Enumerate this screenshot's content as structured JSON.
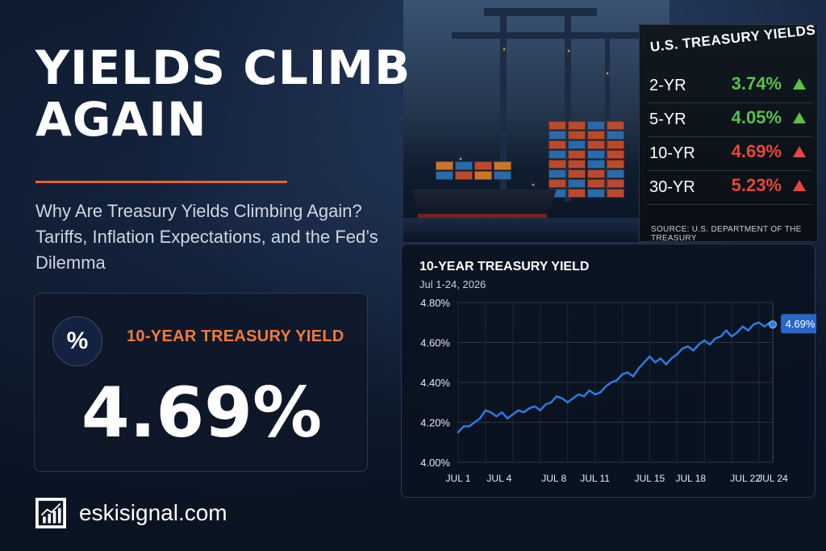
{
  "headline": {
    "title_line1": "YIELDS CLIMB",
    "title_line2": "AGAIN",
    "subtitle": "Why Are Treasury Yields Climbing Again? Tariffs, Inflation Expectations, and the Fed’s Dilemma"
  },
  "yield_card": {
    "icon": "percent-icon",
    "icon_text": "%",
    "label": "10-YEAR TREASURY YIELD",
    "value": "4.69%"
  },
  "brand": {
    "icon": "chart-logo-icon",
    "text": "eskisignal.com"
  },
  "board": {
    "title": "U.S. TREASURY YIELDS",
    "rows": [
      {
        "tenor": "2-YR",
        "rate": "3.74%",
        "direction": "up",
        "color": "#58c24a"
      },
      {
        "tenor": "5-YR",
        "rate": "4.05%",
        "direction": "up",
        "color": "#58c24a"
      },
      {
        "tenor": "10-YR",
        "rate": "4.69%",
        "direction": "up",
        "color": "#e8463a"
      },
      {
        "tenor": "30-YR",
        "rate": "5.23%",
        "direction": "up",
        "color": "#e8463a"
      }
    ],
    "source": "SOURCE: U.S. DEPARTMENT OF THE TREASURY"
  },
  "chart_data": {
    "type": "line",
    "title": "10-YEAR TREASURY YIELD",
    "subtitle": "Jul 1-24, 2026",
    "xlabel": "",
    "ylabel": "",
    "ylim": [
      4.0,
      4.8
    ],
    "yticks": [
      "4.00%",
      "4.20%",
      "4.40%",
      "4.60%",
      "4.80%"
    ],
    "ytick_values": [
      4.0,
      4.2,
      4.4,
      4.6,
      4.8
    ],
    "xlim": [
      1,
      24
    ],
    "xticks": [
      "JUL 1",
      "JUL 4",
      "JUL 8",
      "JUL 11",
      "JUL 15",
      "JUL 18",
      "JUL 22",
      "JUL 24"
    ],
    "xtick_values": [
      1,
      4,
      8,
      11,
      15,
      18,
      22,
      24
    ],
    "grid": true,
    "line_color": "#2f7be0",
    "end_label": "4.69%",
    "series": [
      {
        "x": [
          1.0,
          1.4,
          1.8,
          2.2,
          2.6,
          3.0,
          3.4,
          3.8,
          4.2,
          4.6,
          5.0,
          5.4,
          5.8,
          6.2,
          6.6,
          7.0,
          7.4,
          7.8,
          8.2,
          8.6,
          9.0,
          9.4,
          9.8,
          10.2,
          10.6,
          11.0,
          11.4,
          11.8,
          12.2,
          12.6,
          13.0,
          13.4,
          13.8,
          14.2,
          14.6,
          15.0,
          15.4,
          15.8,
          16.2,
          16.6,
          17.0,
          17.4,
          17.8,
          18.2,
          18.6,
          19.0,
          19.4,
          19.8,
          20.2,
          20.6,
          21.0,
          21.4,
          21.8,
          22.2,
          22.6,
          23.0,
          23.4,
          23.8,
          24.0
        ],
        "y": [
          4.15,
          4.18,
          4.18,
          4.2,
          4.22,
          4.26,
          4.25,
          4.23,
          4.25,
          4.22,
          4.24,
          4.26,
          4.25,
          4.27,
          4.28,
          4.26,
          4.29,
          4.3,
          4.33,
          4.32,
          4.3,
          4.32,
          4.34,
          4.33,
          4.36,
          4.34,
          4.35,
          4.38,
          4.4,
          4.41,
          4.44,
          4.45,
          4.43,
          4.47,
          4.5,
          4.53,
          4.5,
          4.52,
          4.49,
          4.52,
          4.54,
          4.57,
          4.58,
          4.56,
          4.59,
          4.61,
          4.59,
          4.62,
          4.63,
          4.66,
          4.63,
          4.65,
          4.68,
          4.66,
          4.69,
          4.7,
          4.68,
          4.7,
          4.69
        ]
      }
    ]
  }
}
